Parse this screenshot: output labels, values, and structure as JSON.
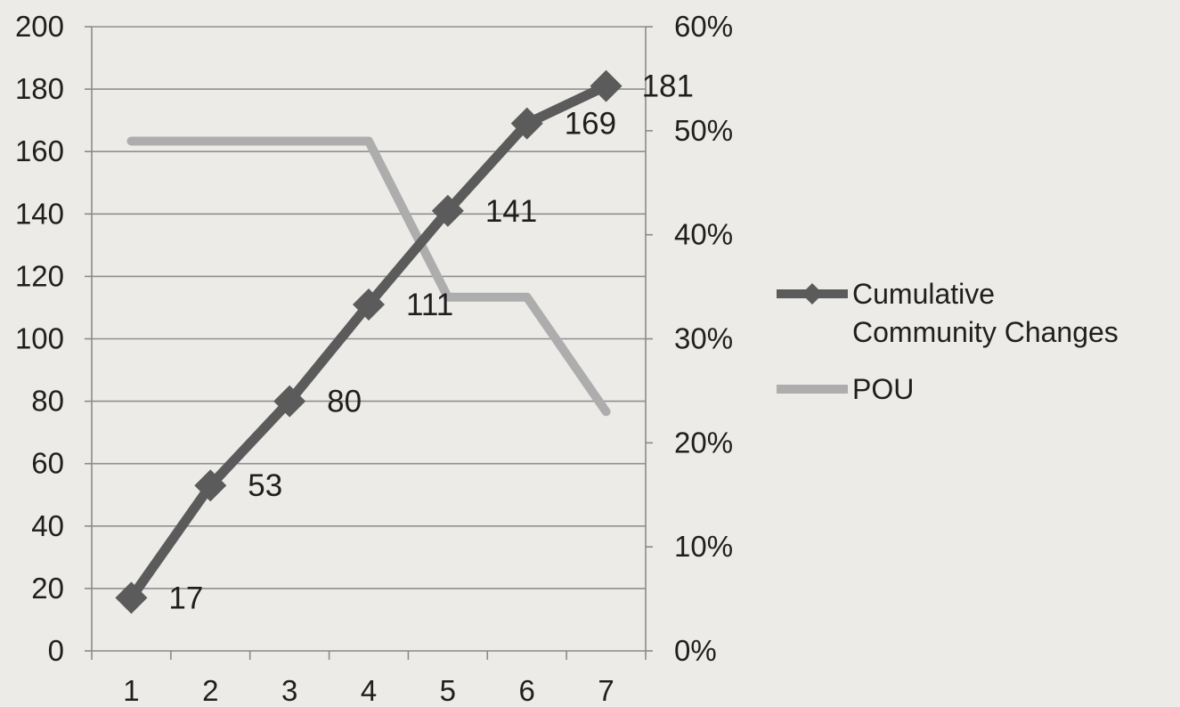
{
  "chart_data": {
    "type": "line",
    "title": "",
    "xlabel": "",
    "ylabel": "",
    "categories": [
      "1",
      "2",
      "3",
      "4",
      "5",
      "6",
      "7"
    ],
    "y_left": {
      "range": [
        0,
        200
      ],
      "step": 20,
      "ticks": [
        "0",
        "20",
        "40",
        "60",
        "80",
        "100",
        "120",
        "140",
        "160",
        "180",
        "200"
      ]
    },
    "y_right": {
      "range": [
        0,
        0.6
      ],
      "step": 0.1,
      "ticks": [
        "0%",
        "10%",
        "20%",
        "30%",
        "40%",
        "50%",
        "60%"
      ]
    },
    "grid": true,
    "legend_position": "right",
    "series": [
      {
        "name": "Cumulative Community Changes",
        "axis": "left",
        "values": [
          17,
          53,
          80,
          111,
          141,
          169,
          181
        ],
        "data_labels": [
          "17",
          "53",
          "80",
          "111",
          "141",
          "169",
          "181"
        ],
        "marker": "diamond",
        "color": "#5b5b5b"
      },
      {
        "name": "POU",
        "axis": "right",
        "values": [
          0.49,
          0.49,
          0.49,
          0.49,
          0.34,
          0.34,
          0.23
        ],
        "marker": "none",
        "color": "#adadad"
      }
    ],
    "legend": {
      "entries": [
        {
          "lines": [
            "Cumulative",
            "Community Changes"
          ]
        },
        {
          "lines": [
            "POU"
          ]
        }
      ]
    }
  }
}
